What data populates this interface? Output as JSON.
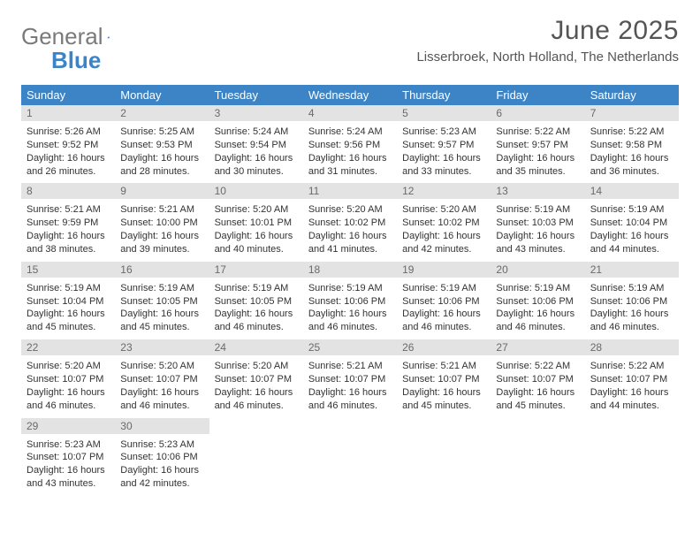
{
  "logo": {
    "gray": "General",
    "blue": "Blue"
  },
  "title": "June 2025",
  "location": "Lisserbroek, North Holland, The Netherlands",
  "colors": {
    "header_bg": "#3d84c6",
    "header_text": "#ffffff",
    "daybar_bg": "#e3e3e3",
    "daybar_text": "#6a6a6a",
    "body_text": "#333333",
    "logo_gray": "#7a7a7a",
    "logo_blue": "#3d84c6",
    "background": "#ffffff"
  },
  "weekdays": [
    "Sunday",
    "Monday",
    "Tuesday",
    "Wednesday",
    "Thursday",
    "Friday",
    "Saturday"
  ],
  "days": [
    {
      "n": "1",
      "sunrise": "Sunrise: 5:26 AM",
      "sunset": "Sunset: 9:52 PM",
      "d1": "Daylight: 16 hours",
      "d2": "and 26 minutes."
    },
    {
      "n": "2",
      "sunrise": "Sunrise: 5:25 AM",
      "sunset": "Sunset: 9:53 PM",
      "d1": "Daylight: 16 hours",
      "d2": "and 28 minutes."
    },
    {
      "n": "3",
      "sunrise": "Sunrise: 5:24 AM",
      "sunset": "Sunset: 9:54 PM",
      "d1": "Daylight: 16 hours",
      "d2": "and 30 minutes."
    },
    {
      "n": "4",
      "sunrise": "Sunrise: 5:24 AM",
      "sunset": "Sunset: 9:56 PM",
      "d1": "Daylight: 16 hours",
      "d2": "and 31 minutes."
    },
    {
      "n": "5",
      "sunrise": "Sunrise: 5:23 AM",
      "sunset": "Sunset: 9:57 PM",
      "d1": "Daylight: 16 hours",
      "d2": "and 33 minutes."
    },
    {
      "n": "6",
      "sunrise": "Sunrise: 5:22 AM",
      "sunset": "Sunset: 9:57 PM",
      "d1": "Daylight: 16 hours",
      "d2": "and 35 minutes."
    },
    {
      "n": "7",
      "sunrise": "Sunrise: 5:22 AM",
      "sunset": "Sunset: 9:58 PM",
      "d1": "Daylight: 16 hours",
      "d2": "and 36 minutes."
    },
    {
      "n": "8",
      "sunrise": "Sunrise: 5:21 AM",
      "sunset": "Sunset: 9:59 PM",
      "d1": "Daylight: 16 hours",
      "d2": "and 38 minutes."
    },
    {
      "n": "9",
      "sunrise": "Sunrise: 5:21 AM",
      "sunset": "Sunset: 10:00 PM",
      "d1": "Daylight: 16 hours",
      "d2": "and 39 minutes."
    },
    {
      "n": "10",
      "sunrise": "Sunrise: 5:20 AM",
      "sunset": "Sunset: 10:01 PM",
      "d1": "Daylight: 16 hours",
      "d2": "and 40 minutes."
    },
    {
      "n": "11",
      "sunrise": "Sunrise: 5:20 AM",
      "sunset": "Sunset: 10:02 PM",
      "d1": "Daylight: 16 hours",
      "d2": "and 41 minutes."
    },
    {
      "n": "12",
      "sunrise": "Sunrise: 5:20 AM",
      "sunset": "Sunset: 10:02 PM",
      "d1": "Daylight: 16 hours",
      "d2": "and 42 minutes."
    },
    {
      "n": "13",
      "sunrise": "Sunrise: 5:19 AM",
      "sunset": "Sunset: 10:03 PM",
      "d1": "Daylight: 16 hours",
      "d2": "and 43 minutes."
    },
    {
      "n": "14",
      "sunrise": "Sunrise: 5:19 AM",
      "sunset": "Sunset: 10:04 PM",
      "d1": "Daylight: 16 hours",
      "d2": "and 44 minutes."
    },
    {
      "n": "15",
      "sunrise": "Sunrise: 5:19 AM",
      "sunset": "Sunset: 10:04 PM",
      "d1": "Daylight: 16 hours",
      "d2": "and 45 minutes."
    },
    {
      "n": "16",
      "sunrise": "Sunrise: 5:19 AM",
      "sunset": "Sunset: 10:05 PM",
      "d1": "Daylight: 16 hours",
      "d2": "and 45 minutes."
    },
    {
      "n": "17",
      "sunrise": "Sunrise: 5:19 AM",
      "sunset": "Sunset: 10:05 PM",
      "d1": "Daylight: 16 hours",
      "d2": "and 46 minutes."
    },
    {
      "n": "18",
      "sunrise": "Sunrise: 5:19 AM",
      "sunset": "Sunset: 10:06 PM",
      "d1": "Daylight: 16 hours",
      "d2": "and 46 minutes."
    },
    {
      "n": "19",
      "sunrise": "Sunrise: 5:19 AM",
      "sunset": "Sunset: 10:06 PM",
      "d1": "Daylight: 16 hours",
      "d2": "and 46 minutes."
    },
    {
      "n": "20",
      "sunrise": "Sunrise: 5:19 AM",
      "sunset": "Sunset: 10:06 PM",
      "d1": "Daylight: 16 hours",
      "d2": "and 46 minutes."
    },
    {
      "n": "21",
      "sunrise": "Sunrise: 5:19 AM",
      "sunset": "Sunset: 10:06 PM",
      "d1": "Daylight: 16 hours",
      "d2": "and 46 minutes."
    },
    {
      "n": "22",
      "sunrise": "Sunrise: 5:20 AM",
      "sunset": "Sunset: 10:07 PM",
      "d1": "Daylight: 16 hours",
      "d2": "and 46 minutes."
    },
    {
      "n": "23",
      "sunrise": "Sunrise: 5:20 AM",
      "sunset": "Sunset: 10:07 PM",
      "d1": "Daylight: 16 hours",
      "d2": "and 46 minutes."
    },
    {
      "n": "24",
      "sunrise": "Sunrise: 5:20 AM",
      "sunset": "Sunset: 10:07 PM",
      "d1": "Daylight: 16 hours",
      "d2": "and 46 minutes."
    },
    {
      "n": "25",
      "sunrise": "Sunrise: 5:21 AM",
      "sunset": "Sunset: 10:07 PM",
      "d1": "Daylight: 16 hours",
      "d2": "and 46 minutes."
    },
    {
      "n": "26",
      "sunrise": "Sunrise: 5:21 AM",
      "sunset": "Sunset: 10:07 PM",
      "d1": "Daylight: 16 hours",
      "d2": "and 45 minutes."
    },
    {
      "n": "27",
      "sunrise": "Sunrise: 5:22 AM",
      "sunset": "Sunset: 10:07 PM",
      "d1": "Daylight: 16 hours",
      "d2": "and 45 minutes."
    },
    {
      "n": "28",
      "sunrise": "Sunrise: 5:22 AM",
      "sunset": "Sunset: 10:07 PM",
      "d1": "Daylight: 16 hours",
      "d2": "and 44 minutes."
    },
    {
      "n": "29",
      "sunrise": "Sunrise: 5:23 AM",
      "sunset": "Sunset: 10:07 PM",
      "d1": "Daylight: 16 hours",
      "d2": "and 43 minutes."
    },
    {
      "n": "30",
      "sunrise": "Sunrise: 5:23 AM",
      "sunset": "Sunset: 10:06 PM",
      "d1": "Daylight: 16 hours",
      "d2": "and 42 minutes."
    }
  ]
}
